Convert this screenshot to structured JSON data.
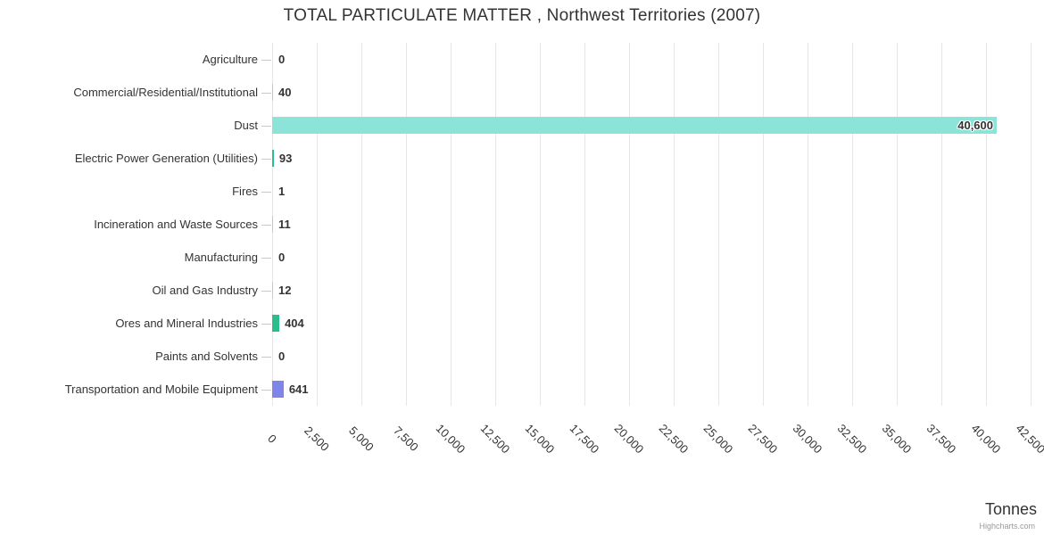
{
  "chart_data": {
    "type": "bar",
    "title": "TOTAL PARTICULATE MATTER , Northwest Territories (2007)",
    "categories": [
      "Agriculture",
      "Commercial/Residential/Institutional",
      "Dust",
      "Electric Power Generation (Utilities)",
      "Fires",
      "Incineration and Waste Sources",
      "Manufacturing",
      "Oil and Gas Industry",
      "Ores and Mineral Industries",
      "Paints and Solvents",
      "Transportation and Mobile Equipment"
    ],
    "values": [
      0,
      40,
      40600,
      93,
      1,
      11,
      0,
      12,
      404,
      0,
      641
    ],
    "value_labels": [
      "0",
      "40",
      "40,600",
      "93",
      "1",
      "11",
      "0",
      "12",
      "404",
      "0",
      "641"
    ],
    "bar_colors": [
      "#8ce4d8",
      "#8ce4d8",
      "#8ce4d8",
      "#2bbd8c",
      "#8ce4d8",
      "#8ce4d8",
      "#8ce4d8",
      "#8ce4d8",
      "#2bbd8c",
      "#8ce4d8",
      "#8085e9"
    ],
    "xlabel": "Tonnes",
    "x_ticks": [
      "0",
      "2,500",
      "5,000",
      "7,500",
      "10,000",
      "12,500",
      "15,000",
      "17,500",
      "20,000",
      "22,500",
      "25,000",
      "27,500",
      "30,000",
      "32,500",
      "35,000",
      "37,500",
      "40,000",
      "42,500"
    ],
    "xlim": [
      0,
      42500
    ],
    "grid": true,
    "legend": "none",
    "colors": {
      "title_text": "#333333",
      "axis_text": "#333333",
      "gridline": "#e6e6e6",
      "tick": "#c9c9c9",
      "credits_text": "#999999"
    },
    "credit": "Highcharts.com"
  }
}
